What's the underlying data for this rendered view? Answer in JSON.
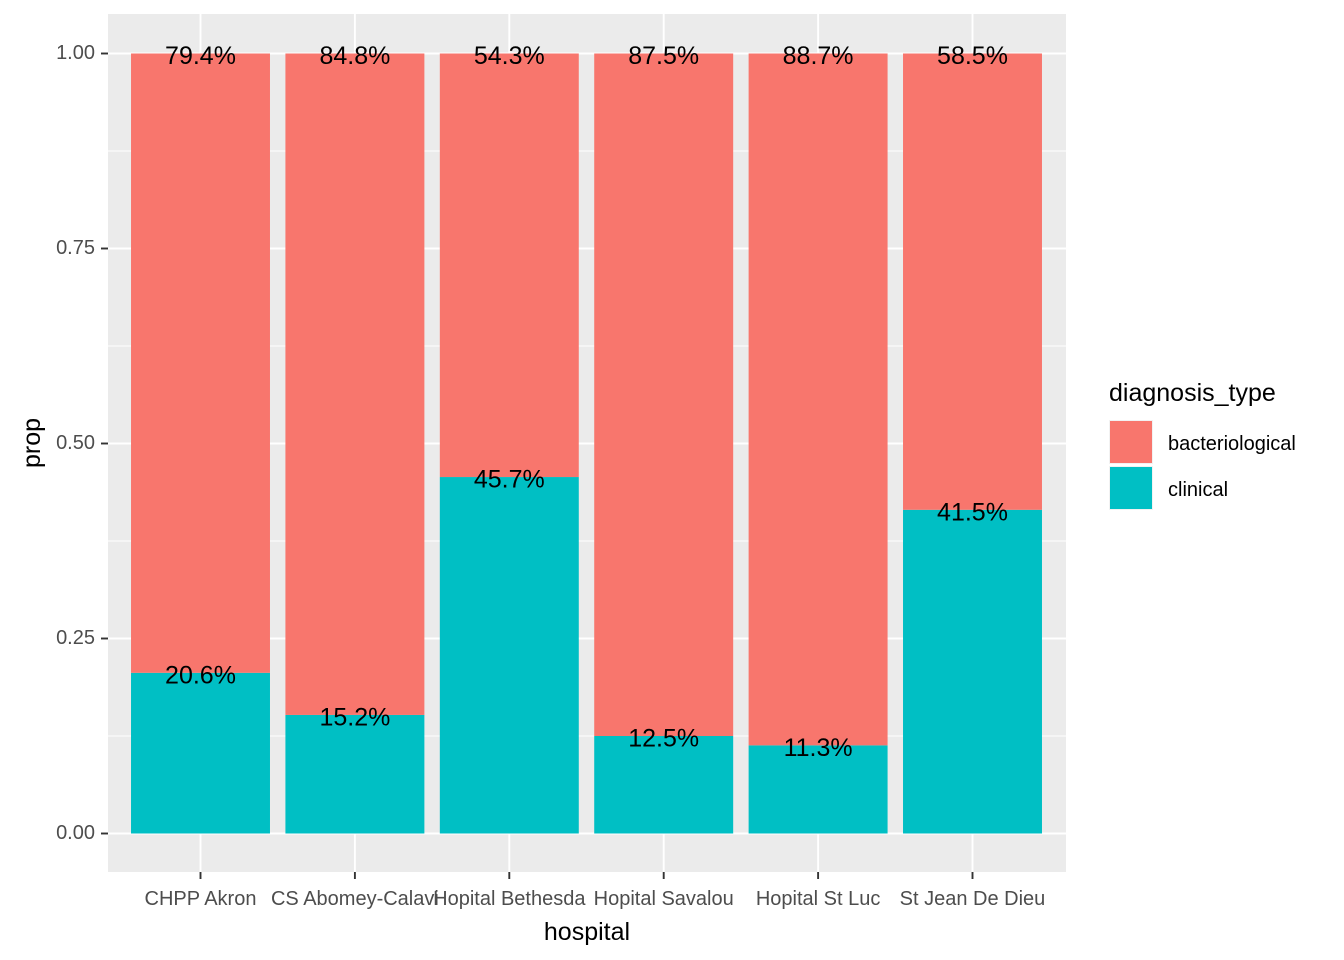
{
  "chart_data": {
    "type": "bar",
    "stacked": true,
    "xlabel": "hospital",
    "ylabel": "prop",
    "ylim": [
      0,
      1
    ],
    "yticks": [
      "0.00",
      "0.25",
      "0.50",
      "0.75",
      "1.00"
    ],
    "ytick_values": [
      0,
      0.25,
      0.5,
      0.75,
      1
    ],
    "categories": [
      "CHPP Akron",
      "CS Abomey-Calavi",
      "Hopital Bethesda",
      "Hopital Savalou",
      "Hopital St Luc",
      "St Jean De Dieu"
    ],
    "legend": {
      "title": "diagnosis_type",
      "position": "right"
    },
    "series": [
      {
        "name": "bacteriological",
        "color": "#F8766D",
        "values": [
          0.794,
          0.848,
          0.543,
          0.875,
          0.887,
          0.585
        ],
        "labels": [
          "79.4%",
          "84.8%",
          "54.3%",
          "87.5%",
          "88.7%",
          "58.5%"
        ]
      },
      {
        "name": "clinical",
        "color": "#00BFC4",
        "values": [
          0.206,
          0.152,
          0.457,
          0.125,
          0.113,
          0.415
        ],
        "labels": [
          "20.6%",
          "15.2%",
          "45.7%",
          "12.5%",
          "11.3%",
          "41.5%"
        ]
      }
    ],
    "grid": true,
    "panel_background": "#EBEBEB"
  }
}
